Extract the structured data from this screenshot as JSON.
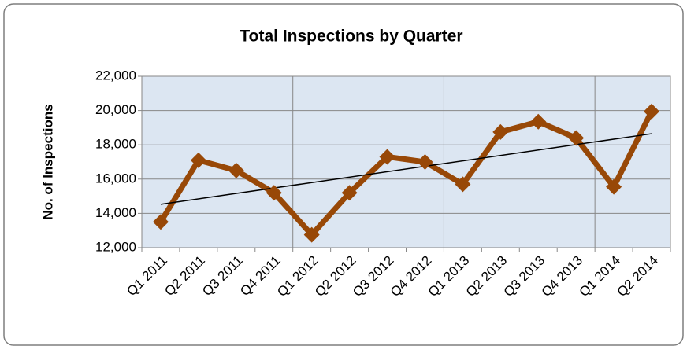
{
  "chart_data": {
    "type": "line",
    "title": "Total Inspections by Quarter",
    "y_label": "No. of Inspections",
    "categories": [
      "Q1 2011",
      "Q2 2011",
      "Q3 2011",
      "Q4 2011",
      "Q1 2012",
      "Q2 2012",
      "Q3 2012",
      "Q4 2012",
      "Q1 2013",
      "Q2 2013",
      "Q3 2013",
      "Q4 2013",
      "Q1 2014",
      "Q2 2014"
    ],
    "series": [
      {
        "name": "Total Inspections",
        "color": "#984807",
        "values": [
          13500,
          17100,
          16500,
          15200,
          12750,
          15200,
          17300,
          17000,
          15700,
          18750,
          19350,
          18400,
          15550,
          19950
        ]
      }
    ],
    "ylim": [
      12000,
      22000
    ],
    "yticks": [
      {
        "value": 12000,
        "label": "12,000"
      },
      {
        "value": 14000,
        "label": "14,000"
      },
      {
        "value": 16000,
        "label": "16,000"
      },
      {
        "value": 18000,
        "label": "18,000"
      },
      {
        "value": 20000,
        "label": "20,000"
      },
      {
        "value": 22000,
        "label": "22,000"
      }
    ],
    "grid": true,
    "trendline": true,
    "trendline_color": "#000000",
    "plot_background": "#dce6f2"
  }
}
